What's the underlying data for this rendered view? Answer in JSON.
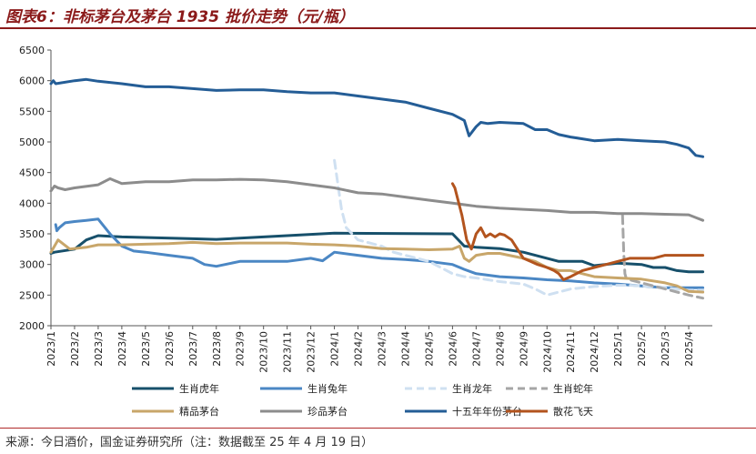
{
  "page": {
    "title": "图表6：非标茅台及茅台 1935 批价走势（元/瓶）",
    "source": "来源：今日酒价，国金证券研究所（注：数据截至 25 年 4 月 19 日）"
  },
  "chart_data": {
    "type": "line",
    "title": "图表6：非标茅台及茅台 1935 批价走势（元/瓶）",
    "xlabel": "",
    "ylabel": "",
    "ylim": [
      2000,
      6500
    ],
    "yticks": [
      2000,
      2500,
      3000,
      3500,
      4000,
      4500,
      5000,
      5500,
      6000,
      6500
    ],
    "xlim": [
      0,
      28
    ],
    "xticks": [
      "2023/1",
      "2023/2",
      "2023/3",
      "2023/4",
      "2023/5",
      "2023/6",
      "2023/7",
      "2023/8",
      "2023/9",
      "2023/10",
      "2023/11",
      "2023/12",
      "2024/1",
      "2024/2",
      "2024/3",
      "2024/4",
      "2024/5",
      "2024/6",
      "2024/7",
      "2024/8",
      "2024/9",
      "2024/10",
      "2024/11",
      "2024/12",
      "2025/1",
      "2025/2",
      "2025/3",
      "2025/4"
    ],
    "grid": false,
    "legend_position": "bottom",
    "series": [
      {
        "name": "生肖虎年",
        "color": "#17506b",
        "style": "solid",
        "x": [
          0,
          0.15,
          1,
          1.5,
          2,
          3,
          6,
          7,
          9,
          12,
          17,
          17.5,
          18,
          19,
          20,
          21,
          21.5,
          22,
          22.5,
          23,
          24,
          25,
          25.5,
          26,
          26.5,
          27,
          27.6
        ],
        "y": [
          3180,
          3200,
          3250,
          3400,
          3470,
          3450,
          3420,
          3410,
          3450,
          3510,
          3500,
          3300,
          3280,
          3260,
          3200,
          3100,
          3050,
          3050,
          3050,
          2980,
          3020,
          3000,
          2950,
          2950,
          2900,
          2880,
          2880
        ]
      },
      {
        "name": "生肖兔年",
        "color": "#4b87c4",
        "style": "solid",
        "x": [
          0.2,
          0.25,
          0.35,
          0.6,
          1,
          1.5,
          2,
          2.5,
          3,
          3.5,
          4,
          5,
          6,
          6.5,
          7,
          8,
          10,
          11,
          11.5,
          12,
          13,
          14,
          15,
          16,
          17,
          17.5,
          18,
          19,
          20,
          21,
          22,
          23,
          24,
          25,
          26,
          27,
          27.6
        ],
        "y": [
          3650,
          3550,
          3600,
          3680,
          3700,
          3720,
          3740,
          3500,
          3300,
          3220,
          3200,
          3150,
          3100,
          3000,
          2970,
          3050,
          3050,
          3100,
          3060,
          3200,
          3150,
          3100,
          3080,
          3050,
          3000,
          2920,
          2850,
          2800,
          2780,
          2750,
          2730,
          2700,
          2680,
          2650,
          2620,
          2620,
          2620
        ]
      },
      {
        "name": "生肖龙年",
        "color": "#cfe0f1",
        "style": "dashed",
        "x": [
          12,
          12.15,
          12.3,
          12.5,
          13,
          13.5,
          14,
          14.5,
          15,
          15.5,
          16,
          16.5,
          17,
          17.5,
          18,
          18.5,
          19,
          19.5,
          20,
          20.5,
          21,
          21.5,
          22,
          22.5,
          23,
          23.5,
          24,
          24.5,
          25,
          25.5,
          26,
          26.5,
          27,
          27.6
        ],
        "y": [
          4700,
          4300,
          3900,
          3600,
          3400,
          3350,
          3300,
          3200,
          3150,
          3100,
          3050,
          2950,
          2850,
          2800,
          2780,
          2750,
          2720,
          2700,
          2680,
          2600,
          2500,
          2550,
          2600,
          2620,
          2640,
          2650,
          2660,
          2660,
          2650,
          2640,
          2620,
          2600,
          2580,
          2580
        ]
      },
      {
        "name": "生肖蛇年",
        "color": "#a6a6a6",
        "style": "dashed",
        "x": [
          24.2,
          24.25,
          24.3,
          24.35,
          24.5,
          25,
          25.5,
          26,
          26.5,
          27,
          27.6
        ],
        "y": [
          3800,
          3200,
          2850,
          2780,
          2750,
          2700,
          2650,
          2600,
          2550,
          2500,
          2450
        ]
      },
      {
        "name": "精品茅台",
        "color": "#c8a66a",
        "style": "solid",
        "x": [
          0,
          0.3,
          0.8,
          1.5,
          2,
          3,
          4,
          5,
          6,
          7,
          8,
          9,
          10,
          11,
          12,
          13,
          14,
          15,
          16,
          17,
          17.3,
          17.5,
          17.7,
          18,
          18.5,
          19,
          20,
          20.5,
          21,
          21.5,
          22,
          22.5,
          23,
          24,
          25,
          26,
          26.5,
          27,
          27.6
        ],
        "y": [
          3200,
          3400,
          3250,
          3280,
          3320,
          3320,
          3330,
          3340,
          3360,
          3340,
          3350,
          3350,
          3350,
          3330,
          3320,
          3300,
          3260,
          3250,
          3240,
          3250,
          3300,
          3100,
          3050,
          3150,
          3180,
          3180,
          3100,
          3050,
          2950,
          2900,
          2900,
          2850,
          2800,
          2780,
          2760,
          2700,
          2650,
          2560,
          2550
        ]
      },
      {
        "name": "珍品茅台",
        "color": "#8c8c8c",
        "style": "solid",
        "x": [
          0,
          0.15,
          0.3,
          0.6,
          1,
          2,
          2.5,
          3,
          4,
          5,
          6,
          7,
          8,
          9,
          10,
          11,
          12,
          13,
          14,
          15,
          16,
          17,
          18,
          19,
          20,
          21,
          22,
          23,
          24,
          25,
          26,
          27,
          27.6
        ],
        "y": [
          4200,
          4280,
          4250,
          4220,
          4250,
          4300,
          4400,
          4320,
          4350,
          4350,
          4380,
          4380,
          4390,
          4380,
          4350,
          4300,
          4250,
          4170,
          4150,
          4100,
          4050,
          4000,
          3950,
          3920,
          3900,
          3880,
          3850,
          3850,
          3830,
          3830,
          3820,
          3810,
          3720
        ]
      },
      {
        "name": "十五年年份茅台",
        "color": "#245d96",
        "style": "solid",
        "x": [
          0,
          0.1,
          0.2,
          1,
          1.5,
          2,
          3,
          4,
          5,
          6,
          7,
          8,
          9,
          10,
          11,
          12,
          13,
          14,
          15,
          16,
          17,
          17.5,
          17.7,
          18,
          18.2,
          18.5,
          19,
          20,
          20.5,
          21,
          21.5,
          22,
          22.5,
          23,
          24,
          25,
          26,
          26.5,
          27,
          27.3,
          27.6
        ],
        "y": [
          5950,
          6000,
          5950,
          6000,
          6020,
          5990,
          5950,
          5900,
          5900,
          5870,
          5840,
          5850,
          5850,
          5820,
          5800,
          5800,
          5750,
          5700,
          5650,
          5550,
          5450,
          5350,
          5100,
          5250,
          5320,
          5300,
          5320,
          5300,
          5200,
          5200,
          5120,
          5080,
          5050,
          5020,
          5040,
          5020,
          5000,
          4960,
          4900,
          4780,
          4760
        ]
      },
      {
        "name": "散花飞天",
        "color": "#b3541e",
        "style": "solid",
        "x": [
          17,
          17.1,
          17.2,
          17.4,
          17.6,
          17.8,
          18,
          18.2,
          18.4,
          18.6,
          18.8,
          19,
          19.2,
          19.5,
          20,
          20.3,
          20.6,
          21,
          21.3,
          21.5,
          21.7,
          22,
          22.5,
          23,
          23.5,
          24,
          24.5,
          25,
          25.5,
          26,
          26.5,
          27,
          27.6
        ],
        "y": [
          4320,
          4250,
          4100,
          3800,
          3400,
          3250,
          3500,
          3600,
          3450,
          3500,
          3450,
          3500,
          3480,
          3400,
          3100,
          3050,
          3000,
          2950,
          2900,
          2850,
          2750,
          2800,
          2900,
          2950,
          3000,
          3050,
          3100,
          3100,
          3100,
          3150,
          3150,
          3150,
          3150
        ]
      }
    ]
  }
}
